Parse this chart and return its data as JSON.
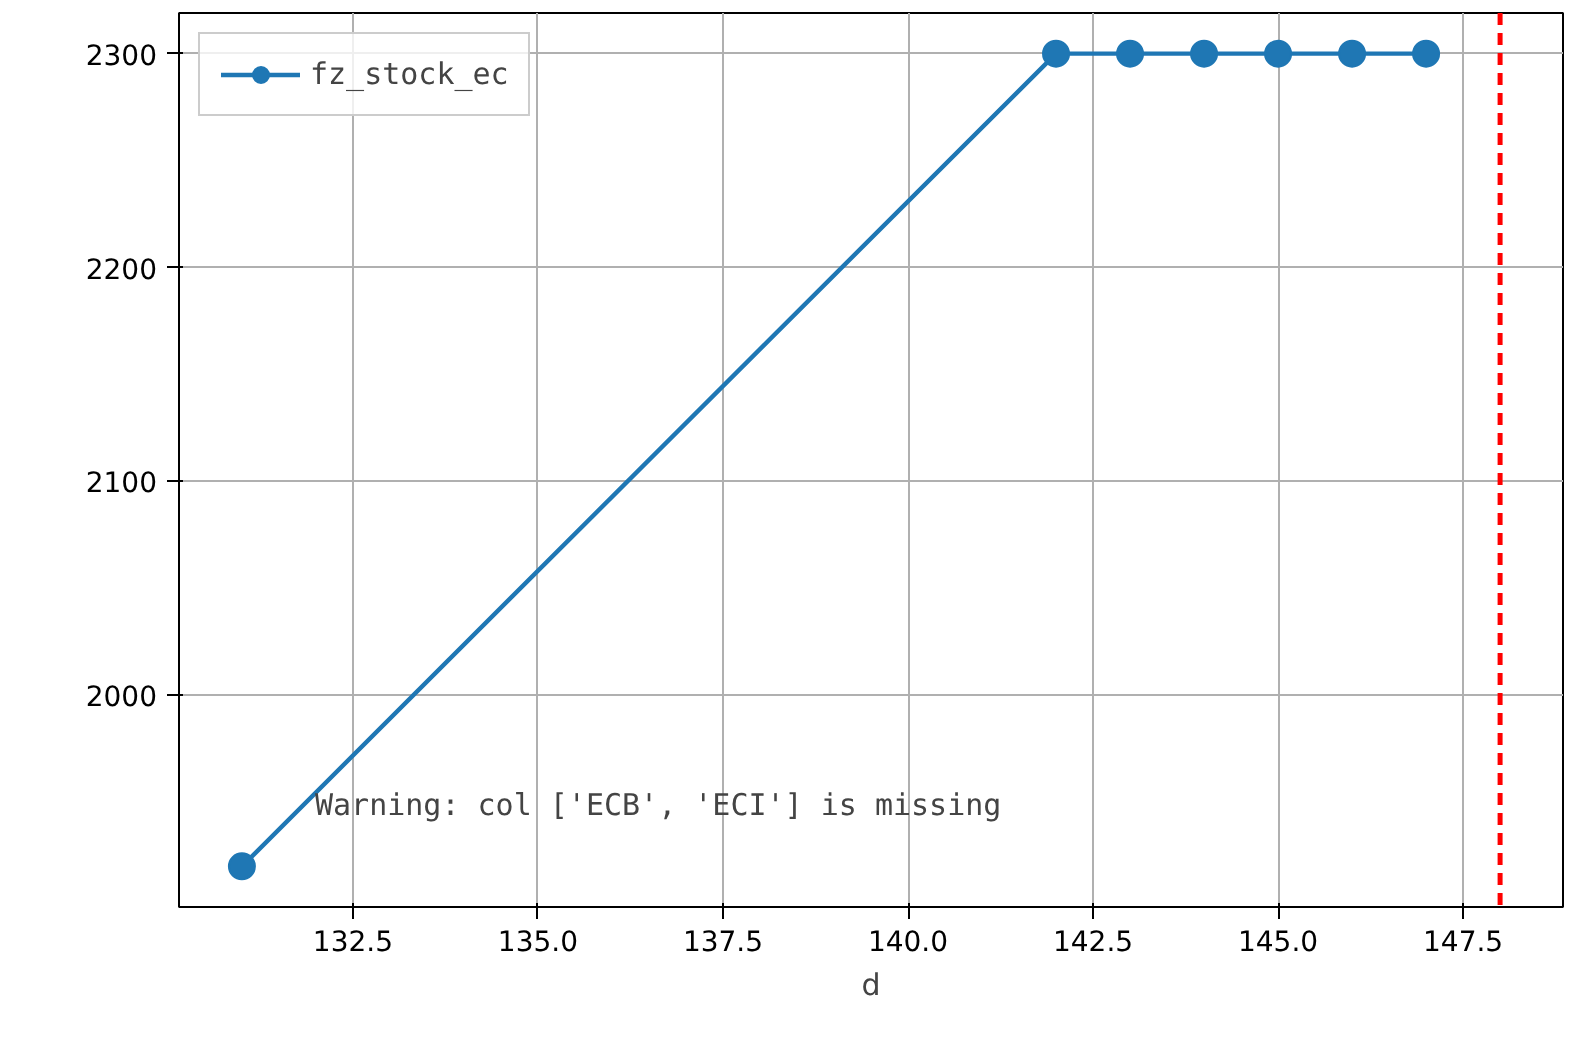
{
  "chart_data": {
    "type": "line",
    "xlabel": "d",
    "x": [
      131,
      142,
      143,
      144,
      145,
      146,
      147
    ],
    "series": [
      {
        "name": "fz_stock_ec",
        "color": "#1f77b4",
        "values": [
          1920,
          2300,
          2300,
          2300,
          2300,
          2300,
          2300
        ]
      }
    ],
    "xlim": [
      130.15,
      148.85
    ],
    "ylim": [
      1901,
      2319
    ],
    "xticks": [
      {
        "value": 132.5,
        "label": "132.5"
      },
      {
        "value": 135,
        "label": "135.0"
      },
      {
        "value": 137.5,
        "label": "137.5"
      },
      {
        "value": 140,
        "label": "140.0"
      },
      {
        "value": 142.5,
        "label": "142.5"
      },
      {
        "value": 145,
        "label": "145.0"
      },
      {
        "value": 147.5,
        "label": "147.5"
      }
    ],
    "yticks": [
      2000,
      2100,
      2200,
      2300
    ],
    "ref_lines": [
      {
        "axis": "x",
        "value": 148,
        "color": "#ff0000",
        "line_style": "dashed"
      }
    ],
    "annotations": [
      "Warning: col ['ECB', 'ECI'] is missing"
    ],
    "grid": true,
    "legend": "top left",
    "marker": "circle",
    "line_style": "solid"
  }
}
